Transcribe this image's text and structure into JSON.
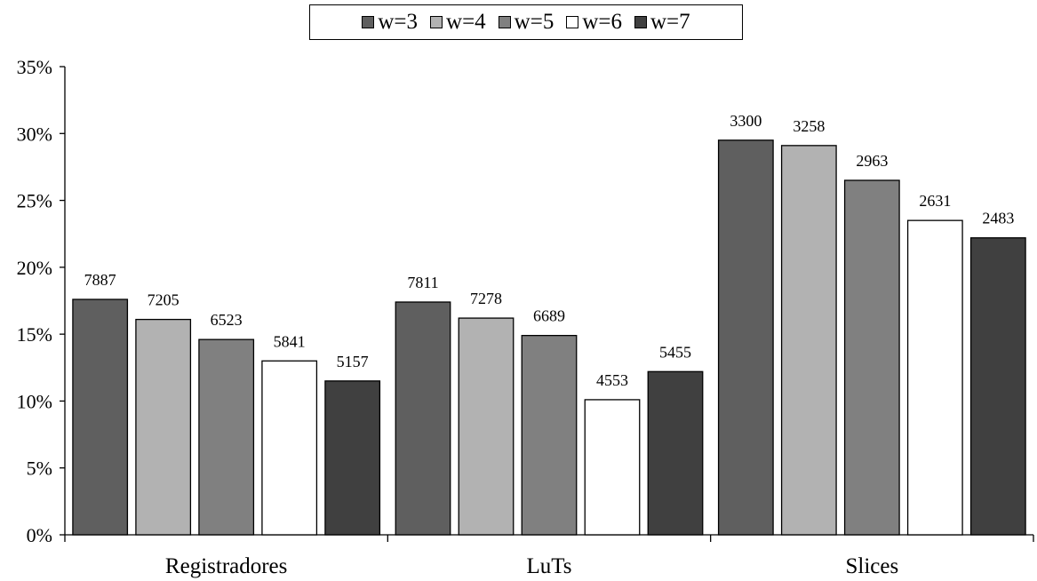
{
  "chart_data": {
    "type": "bar",
    "categories": [
      "Registradores",
      "LuTs",
      "Slices"
    ],
    "series": [
      {
        "name": "w=3",
        "color": "#5f5f5f",
        "values": [
          17.6,
          17.4,
          29.5
        ],
        "labels": [
          "7887",
          "7811",
          "3300"
        ]
      },
      {
        "name": "w=4",
        "color": "#b2b2b2",
        "values": [
          16.1,
          16.2,
          29.1
        ],
        "labels": [
          "7205",
          "7278",
          "3258"
        ]
      },
      {
        "name": "w=5",
        "color": "#808080",
        "values": [
          14.6,
          14.9,
          26.5
        ],
        "labels": [
          "6523",
          "6689",
          "2963"
        ]
      },
      {
        "name": "w=6",
        "color": "#ffffff",
        "values": [
          13.0,
          10.1,
          23.5
        ],
        "labels": [
          "5841",
          "4553",
          "2631"
        ]
      },
      {
        "name": "w=7",
        "color": "#404040",
        "values": [
          11.5,
          12.2,
          22.2
        ],
        "labels": [
          "5157",
          "5455",
          "2483"
        ]
      }
    ],
    "yticks": [
      "0%",
      "5%",
      "10%",
      "15%",
      "20%",
      "25%",
      "30%",
      "35%"
    ],
    "ylim": [
      0,
      35
    ],
    "title": "",
    "xlabel": "",
    "ylabel": "",
    "grid": false,
    "legend_position": "top-center"
  }
}
